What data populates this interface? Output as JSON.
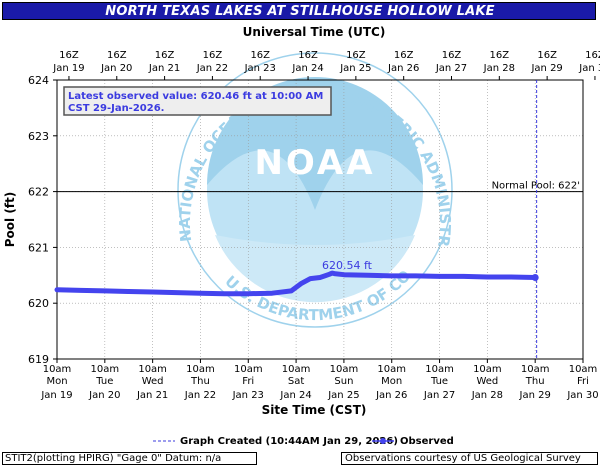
{
  "header": {
    "title": "NORTH TEXAS LAKES AT STILLHOUSE HOLLOW LAKE"
  },
  "top_axis": {
    "title": "Universal Time (UTC)",
    "ticks": [
      {
        "line1": "16Z",
        "line2": "Jan 19"
      },
      {
        "line1": "16Z",
        "line2": "Jan 20"
      },
      {
        "line1": "16Z",
        "line2": "Jan 21"
      },
      {
        "line1": "16Z",
        "line2": "Jan 22"
      },
      {
        "line1": "16Z",
        "line2": "Jan 23"
      },
      {
        "line1": "16Z",
        "line2": "Jan 24"
      },
      {
        "line1": "16Z",
        "line2": "Jan 25"
      },
      {
        "line1": "16Z",
        "line2": "Jan 26"
      },
      {
        "line1": "16Z",
        "line2": "Jan 27"
      },
      {
        "line1": "16Z",
        "line2": "Jan 28"
      },
      {
        "line1": "16Z",
        "line2": "Jan 29"
      },
      {
        "line1": "16Z",
        "line2": "Jan 30"
      }
    ]
  },
  "bottom_axis": {
    "title": "Site Time (CST)",
    "ticks": [
      {
        "line1": "10am",
        "line2": "Mon",
        "line3": "Jan 19"
      },
      {
        "line1": "10am",
        "line2": "Tue",
        "line3": "Jan 20"
      },
      {
        "line1": "10am",
        "line2": "Wed",
        "line3": "Jan 21"
      },
      {
        "line1": "10am",
        "line2": "Thu",
        "line3": "Jan 22"
      },
      {
        "line1": "10am",
        "line2": "Fri",
        "line3": "Jan 23"
      },
      {
        "line1": "10am",
        "line2": "Sat",
        "line3": "Jan 24"
      },
      {
        "line1": "10am",
        "line2": "Sun",
        "line3": "Jan 25"
      },
      {
        "line1": "10am",
        "line2": "Mon",
        "line3": "Jan 26"
      },
      {
        "line1": "10am",
        "line2": "Tue",
        "line3": "Jan 27"
      },
      {
        "line1": "10am",
        "line2": "Wed",
        "line3": "Jan 28"
      },
      {
        "line1": "10am",
        "line2": "Thu",
        "line3": "Jan 29"
      },
      {
        "line1": "10am",
        "line2": "Fri",
        "line3": "Jan 30"
      }
    ]
  },
  "left_axis": {
    "title": "Pool (ft)",
    "ticks": [
      "619",
      "620",
      "621",
      "622",
      "623",
      "624"
    ]
  },
  "annotations": {
    "latest_line1": "Latest observed value: 620.46 ft at 10:00 AM",
    "latest_line2": "CST 29-Jan-2026.",
    "normal_pool": "Normal Pool: 622'",
    "peak_label": "620.54 ft"
  },
  "watermark": {
    "logo_text": "NOAA",
    "ring_text": "NATIONAL OCEANIC AND ATMOSPHERIC ADMINISTRATION",
    "ring_text_bottom": "U.S. DEPARTMENT OF COMMERCE"
  },
  "legend": {
    "created": "Graph Created (10:44AM Jan 29, 2026)",
    "observed": "Observed"
  },
  "footer": {
    "left": "STIT2(plotting HPIRG) \"Gage 0\" Datum: n/a",
    "right": "Observations courtesy of US Geological Survey"
  },
  "colors": {
    "title_bg": "#1a1aa8",
    "observed": "#4444ee",
    "grid": "#9a9a9a",
    "annotation_text": "#3b3be0",
    "watermark_light": "#bfe3f5",
    "watermark_mid": "#9fd2ec"
  },
  "chart_data": {
    "type": "line",
    "ylim": [
      619,
      624
    ],
    "xlim_days": [
      0,
      11
    ],
    "xlabel": "Site Time (CST)",
    "ylabel": "Pool (ft)",
    "grid": true,
    "x_start": "2026-01-19 10:00 CST",
    "reference_lines": [
      {
        "label": "Normal Pool: 622'",
        "y": 622
      }
    ],
    "graph_created": "2026-01-29 10:44 CST",
    "series": [
      {
        "name": "Observed",
        "x": [
          0.0,
          0.5,
          1.0,
          1.5,
          2.0,
          2.5,
          3.0,
          3.5,
          4.0,
          4.5,
          4.9,
          5.1,
          5.3,
          5.5,
          5.6,
          5.7,
          5.75,
          5.8,
          6.0,
          6.5,
          7.0,
          7.5,
          8.0,
          8.5,
          9.0,
          9.5,
          10.0
        ],
        "y": [
          620.24,
          620.23,
          620.22,
          620.21,
          620.2,
          620.19,
          620.18,
          620.17,
          620.17,
          620.18,
          620.22,
          620.35,
          620.44,
          620.46,
          620.49,
          620.52,
          620.54,
          620.53,
          620.51,
          620.5,
          620.49,
          620.49,
          620.48,
          620.48,
          620.47,
          620.47,
          620.46
        ]
      }
    ]
  }
}
